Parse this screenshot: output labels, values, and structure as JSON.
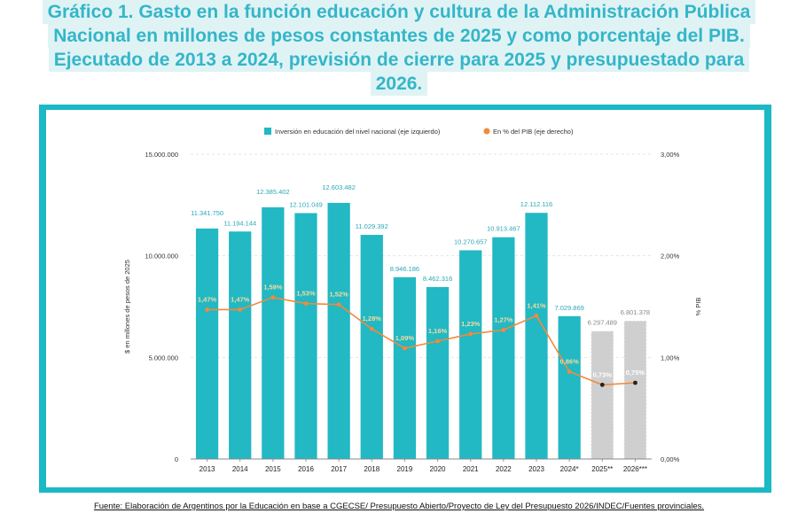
{
  "title": {
    "lines": [
      "Gráfico 1. Gasto en la función educación y cultura de la Administración Pública",
      "Nacional en millones de pesos constantes de 2025 y como porcentaje del PIB.",
      "Ejecutado de 2013 a 2024, previsión de cierre para 2025 y presupuestado para",
      "2026."
    ]
  },
  "chart_data": {
    "type": "bar",
    "categories": [
      "2013",
      "2014",
      "2015",
      "2016",
      "2017",
      "2018",
      "2019",
      "2020",
      "2021",
      "2022",
      "2023",
      "2024*",
      "2025**",
      "2026***"
    ],
    "series": [
      {
        "name": "Inversión en educación del nivel nacional (eje izquierdo)",
        "axis": "left",
        "kind": "bar",
        "values": [
          11341750,
          11194144,
          12385402,
          12101049,
          12603482,
          11029392,
          8946186,
          8462316,
          10270657,
          10913467,
          12112116,
          7029869,
          6297489,
          6801378
        ],
        "labels": [
          "11.341.750",
          "11.194.144",
          "12.385.402",
          "12.101.049",
          "12.603.482",
          "11.029.392",
          "8.946.186",
          "8.462.316",
          "10.270.657",
          "10.913.467",
          "12.112.116",
          "7.029.869",
          "6.297.489",
          "6.801.378"
        ]
      },
      {
        "name": "En % del PIB (eje derecho)",
        "axis": "right",
        "kind": "line",
        "values": [
          1.47,
          1.47,
          1.59,
          1.53,
          1.52,
          1.28,
          1.09,
          1.16,
          1.23,
          1.27,
          1.41,
          0.86,
          0.73,
          0.75
        ],
        "labels": [
          "1,47%",
          "1,47%",
          "1,59%",
          "1,53%",
          "1,52%",
          "1,28%",
          "1,09%",
          "1,16%",
          "1,23%",
          "1,27%",
          "1,41%",
          "0,86%",
          "0,73%",
          "0,75%"
        ]
      }
    ],
    "highlight_categories": [
      "2025**",
      "2026***"
    ],
    "left_axis": {
      "label": "$ en millones de pesos de 2025",
      "ticks": [
        0,
        5000000,
        10000000,
        15000000
      ],
      "tick_labels": [
        "0",
        "5.000.000",
        "10.000.000",
        "15.000.000"
      ],
      "ylim": [
        0,
        15000000
      ]
    },
    "right_axis": {
      "label": "% PIB",
      "ticks": [
        0,
        1,
        2,
        3
      ],
      "tick_labels": [
        "0,00%",
        "1,00%",
        "2,00%",
        "3,00%"
      ],
      "ylim": [
        0,
        3
      ]
    },
    "legend_position": "top-center",
    "colors": {
      "bar": "#22b8c4",
      "bar_highlight": "#cfcfcf",
      "line": "#f28a3a",
      "marker_highlight": "#222222"
    }
  },
  "source": "Fuente: Elaboración de Argentinos por la Educación en base a CGECSE/ Presupuesto Abierto/Proyecto de Ley del Presupuesto 2026/INDEC/Fuentes provinciales."
}
